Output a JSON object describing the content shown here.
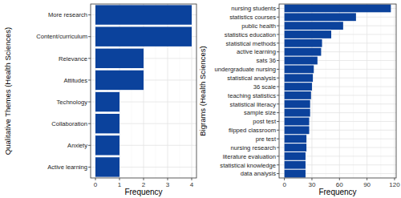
{
  "chart_data": [
    {
      "type": "bar",
      "orientation": "horizontal",
      "y_label": "Qualitative Themes (Health Sciences)",
      "x_label": "Frequency",
      "categories": [
        "More research",
        "Content/curriculum",
        "Relevance",
        "Attitudes",
        "Technology",
        "Collaboration",
        "Anxiety",
        "Active learning"
      ],
      "values": [
        4,
        4,
        2,
        2,
        1,
        1,
        1,
        1
      ],
      "color": "#0b429c",
      "xlim": [
        -0.2,
        4.2
      ],
      "xticks": [
        0,
        1,
        2,
        3,
        4
      ],
      "grid": true
    },
    {
      "type": "bar",
      "orientation": "horizontal",
      "y_label": "Bigrams (Health Sciences)",
      "x_label": "Frequency",
      "categories": [
        "nursing students",
        "statistics courses",
        "public health",
        "statistics education",
        "statistical methods",
        "active learning",
        "sats 36",
        "undergraduate nursing",
        "statistical analysis",
        "36 scale",
        "teaching statistics",
        "statistical literacy",
        "sample size",
        "post test",
        "flipped classroom",
        "pre test",
        "nursing research",
        "literature evaluation",
        "statistical knowledge",
        "data analysis"
      ],
      "values": [
        116,
        78,
        64,
        51,
        41,
        40,
        36,
        32,
        31,
        30,
        29,
        28,
        28,
        27,
        27,
        24,
        24,
        23,
        23,
        23
      ],
      "color": "#0b429c",
      "xlim": [
        -5.8,
        121.8
      ],
      "xticks": [
        0,
        30,
        60,
        90,
        120
      ],
      "grid": true
    }
  ]
}
